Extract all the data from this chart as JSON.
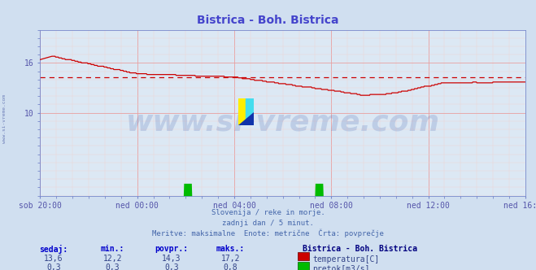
{
  "title": "Bistrica - Boh. Bistrica",
  "title_color": "#4444cc",
  "bg_color": "#d0dff0",
  "plot_bg_color": "#dce8f4",
  "grid_major_color": "#e8a0a0",
  "grid_minor_color": "#f0d0d0",
  "tick_color": "#5555aa",
  "x_labels": [
    "sob 20:00",
    "ned 00:00",
    "ned 04:00",
    "ned 08:00",
    "ned 12:00",
    "ned 16:00"
  ],
  "x_ticks_pos": [
    0,
    240,
    480,
    720,
    960,
    1200
  ],
  "total_points": 1200,
  "y_min": 0,
  "y_max": 20,
  "y_ticks": [
    10,
    16
  ],
  "avg_line": 14.3,
  "avg_line_color": "#cc0000",
  "temp_color": "#cc0000",
  "flow_color": "#00bb00",
  "watermark_text": "www.si-vreme.com",
  "watermark_color": "#3355aa",
  "watermark_alpha": 0.18,
  "footer_lines": [
    "Slovenija / reke in morje.",
    "zadnji dan / 5 minut.",
    "Meritve: maksimalne  Enote: metrične  Črta: povprečje"
  ],
  "footer_color": "#4466aa",
  "legend_title": "Bistrica - Boh. Bistrica",
  "legend_title_color": "#000080",
  "legend_color": "#334488",
  "stats_headers": [
    "sedaj:",
    "min.:",
    "povpr.:",
    "maks.:"
  ],
  "stats_temp": [
    "13,6",
    "12,2",
    "14,3",
    "17,2"
  ],
  "stats_flow": [
    "0,3",
    "0,3",
    "0,3",
    "0,8"
  ],
  "left_label": "www.si-vreme.com",
  "left_label_color": "#5566aa",
  "spine_color": "#7788cc",
  "flow_spike1_start": 355,
  "flow_spike1_end": 375,
  "flow_spike2_start": 680,
  "flow_spike2_end": 700,
  "flow_spike_height": 0.8
}
